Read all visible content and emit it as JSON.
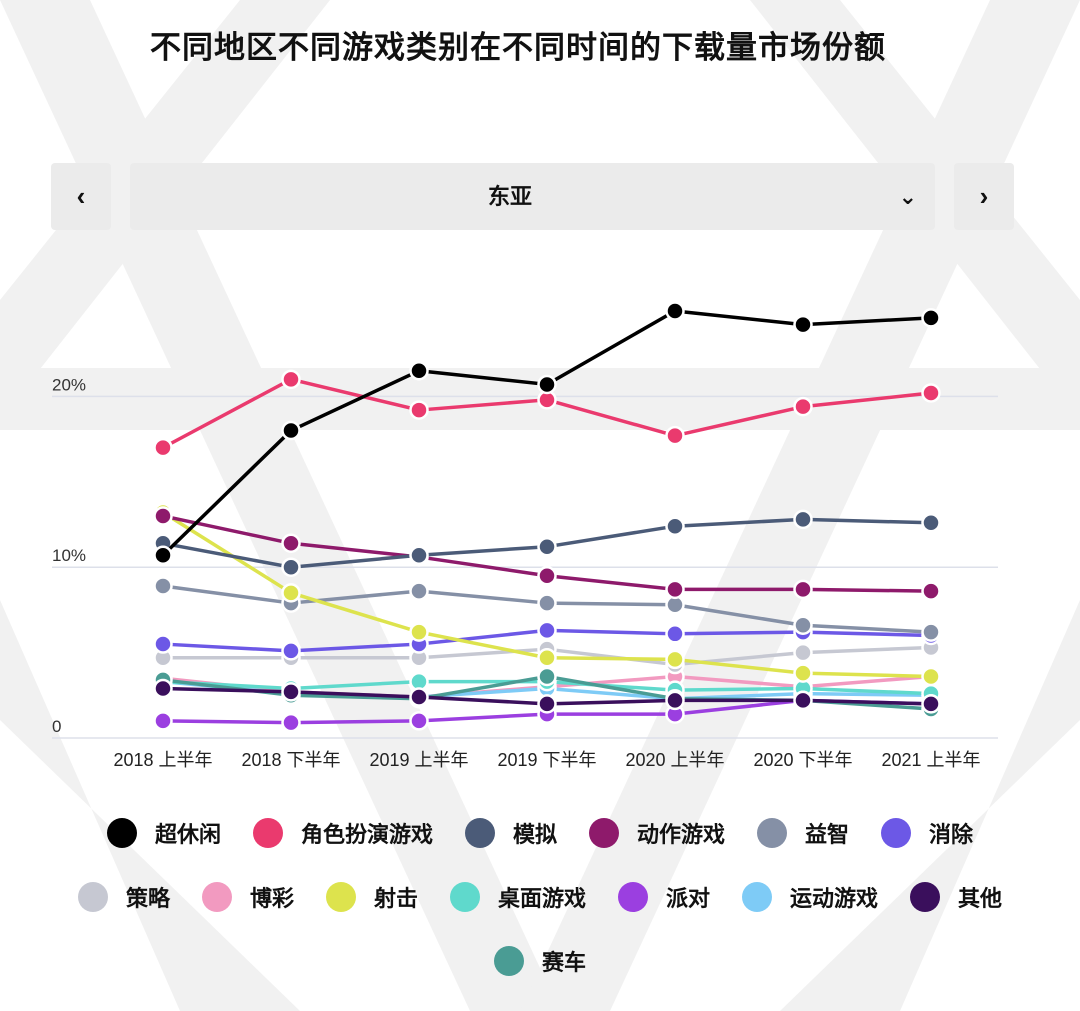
{
  "header": {
    "title": "不同地区不同游戏类别在不同时间的下载量市场份额"
  },
  "controls": {
    "prev_symbol": "‹",
    "next_symbol": "›",
    "region": "东亚",
    "dropdown_symbol": "⌄"
  },
  "chart_data": {
    "type": "line",
    "title": "不同地区不同游戏类别在不同时间的下载量市场份额",
    "xlabel": "",
    "ylabel": "",
    "categories": [
      "2018 上半年",
      "2018 下半年",
      "2019 上半年",
      "2019 下半年",
      "2020 上半年",
      "2020 下半年",
      "2021 上半年"
    ],
    "ylim": [
      0,
      25
    ],
    "yticks": [
      {
        "value": 0,
        "label": "0"
      },
      {
        "value": 10,
        "label": "10%"
      },
      {
        "value": 20,
        "label": "20%"
      }
    ],
    "grid": true,
    "legend_position": "bottom",
    "series": [
      {
        "name": "博彩",
        "color": "#f29ac0",
        "values": [
          3.5,
          2.7,
          2.4,
          3.0,
          3.6,
          3.0,
          3.6
        ]
      },
      {
        "name": "运动游戏",
        "color": "#7ecbf6",
        "values": [
          3.3,
          2.6,
          2.4,
          2.9,
          2.3,
          2.6,
          2.5
        ]
      },
      {
        "name": "桌面游戏",
        "color": "#5fd9cc",
        "values": [
          3.3,
          2.9,
          3.3,
          3.3,
          2.8,
          2.9,
          2.6
        ]
      },
      {
        "name": "策略",
        "color": "#c6c8d2",
        "values": [
          4.7,
          4.7,
          4.7,
          5.2,
          4.3,
          5.0,
          5.3
        ]
      },
      {
        "name": "派对",
        "color": "#9b3fe0",
        "values": [
          1.0,
          0.9,
          1.0,
          1.4,
          1.4,
          2.2,
          2.0
        ]
      },
      {
        "name": "赛车",
        "color": "#4a9c94",
        "values": [
          3.4,
          2.5,
          2.3,
          3.6,
          2.3,
          2.2,
          1.7
        ]
      },
      {
        "name": "其他",
        "color": "#3a0f5c",
        "values": [
          2.9,
          2.7,
          2.4,
          2.0,
          2.2,
          2.2,
          2.0
        ]
      },
      {
        "name": "消除",
        "color": "#6c58e6",
        "values": [
          5.5,
          5.1,
          5.5,
          6.3,
          6.1,
          6.2,
          6.0
        ]
      },
      {
        "name": "益智",
        "color": "#8590a6",
        "values": [
          8.9,
          7.9,
          8.6,
          7.9,
          7.8,
          6.6,
          6.2
        ]
      },
      {
        "name": "射击",
        "color": "#dde34d",
        "values": [
          13.2,
          8.5,
          6.2,
          4.7,
          4.6,
          3.8,
          3.6
        ]
      },
      {
        "name": "动作游戏",
        "color": "#8e1a6b",
        "values": [
          13.0,
          11.4,
          10.6,
          9.5,
          8.7,
          8.7,
          8.6
        ]
      },
      {
        "name": "模拟",
        "color": "#4b5b78",
        "values": [
          11.4,
          10.0,
          10.7,
          11.2,
          12.4,
          12.8,
          12.6
        ]
      },
      {
        "name": "角色扮演游戏",
        "color": "#ea3a6e",
        "values": [
          17.0,
          21.0,
          19.2,
          19.8,
          17.7,
          19.4,
          20.2
        ]
      },
      {
        "name": "超休闲",
        "color": "#000000",
        "values": [
          10.7,
          18.0,
          21.5,
          20.7,
          25.0,
          24.2,
          24.6
        ]
      }
    ]
  },
  "legend": {
    "rows": [
      [
        {
          "name": "超休闲",
          "color": "#000000"
        },
        {
          "name": "角色扮演游戏",
          "color": "#ea3a6e"
        },
        {
          "name": "模拟",
          "color": "#4b5b78"
        },
        {
          "name": "动作游戏",
          "color": "#8e1a6b"
        },
        {
          "name": "益智",
          "color": "#8590a6"
        },
        {
          "name": "消除",
          "color": "#6c58e6"
        }
      ],
      [
        {
          "name": "策略",
          "color": "#c6c8d2"
        },
        {
          "name": "博彩",
          "color": "#f29ac0"
        },
        {
          "name": "射击",
          "color": "#dde34d"
        },
        {
          "name": "桌面游戏",
          "color": "#5fd9cc"
        },
        {
          "name": "派对",
          "color": "#9b3fe0"
        },
        {
          "name": "运动游戏",
          "color": "#7ecbf6"
        },
        {
          "name": "其他",
          "color": "#3a0f5c"
        }
      ],
      [
        {
          "name": "赛车",
          "color": "#4a9c94"
        }
      ]
    ]
  }
}
